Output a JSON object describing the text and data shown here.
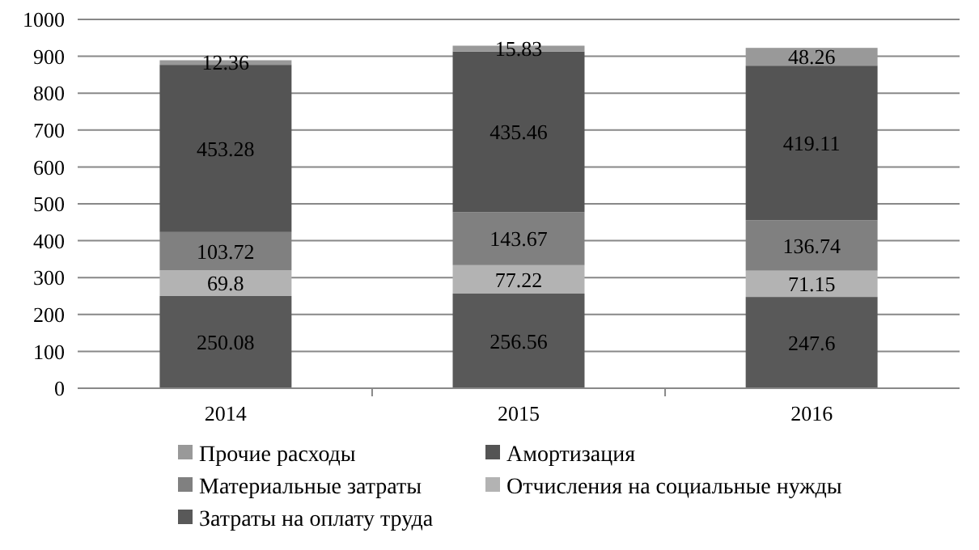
{
  "chart_data": {
    "type": "bar",
    "stacked": true,
    "categories": [
      "2014",
      "2015",
      "2016"
    ],
    "series": [
      {
        "name": "Затраты на оплату труда",
        "color": "#595959",
        "values": [
          250.08,
          256.56,
          247.6
        ]
      },
      {
        "name": "Отчисления на социальные нужды",
        "color": "#b3b3b3",
        "values": [
          69.8,
          77.22,
          71.15
        ]
      },
      {
        "name": "Материальные затраты",
        "color": "#808080",
        "values": [
          103.72,
          143.67,
          136.74
        ]
      },
      {
        "name": "Амортизация",
        "color": "#545454",
        "values": [
          453.28,
          435.46,
          419.11
        ]
      },
      {
        "name": "Прочие расходы",
        "color": "#999999",
        "values": [
          12.36,
          15.83,
          48.26
        ]
      }
    ],
    "ylim": [
      0,
      1000
    ],
    "yticks": [
      0,
      100,
      200,
      300,
      400,
      500,
      600,
      700,
      800,
      900,
      1000
    ],
    "grid": "y",
    "legend": "bottom",
    "data_labels": true
  }
}
